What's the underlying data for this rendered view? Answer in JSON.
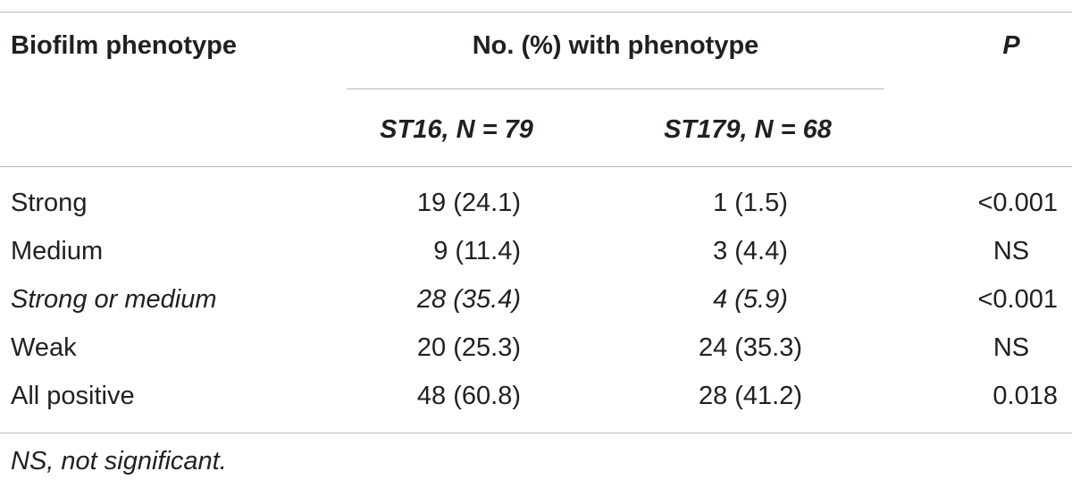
{
  "table": {
    "header": {
      "biofilm_phenotype": "Biofilm phenotype",
      "group_label": "No. (%) with phenotype",
      "p_label": "P",
      "st16_name": "ST16",
      "st16_n": ", N = 79",
      "st179_name": "ST179",
      "st179_n": ", N = 68"
    },
    "rows": [
      {
        "phenotype": "Strong",
        "st16": "19 (24.1)",
        "st179": "1 (1.5)",
        "p": "<0.001",
        "italic": false
      },
      {
        "phenotype": "Medium",
        "st16": "9 (11.4)",
        "st179": "3 (4.4)",
        "p": "NS",
        "italic": false
      },
      {
        "phenotype": "Strong or medium",
        "st16": "28 (35.4)",
        "st179": "4 (5.9)",
        "p": "<0.001",
        "italic": true
      },
      {
        "phenotype": "Weak",
        "st16": "20 (25.3)",
        "st179": "24 (35.3)",
        "p": "NS",
        "italic": false
      },
      {
        "phenotype": "All positive",
        "st16": "48 (60.8)",
        "st179": "28 (41.2)",
        "p": "0.018",
        "italic": false
      }
    ],
    "footnote": "NS, not significant."
  }
}
